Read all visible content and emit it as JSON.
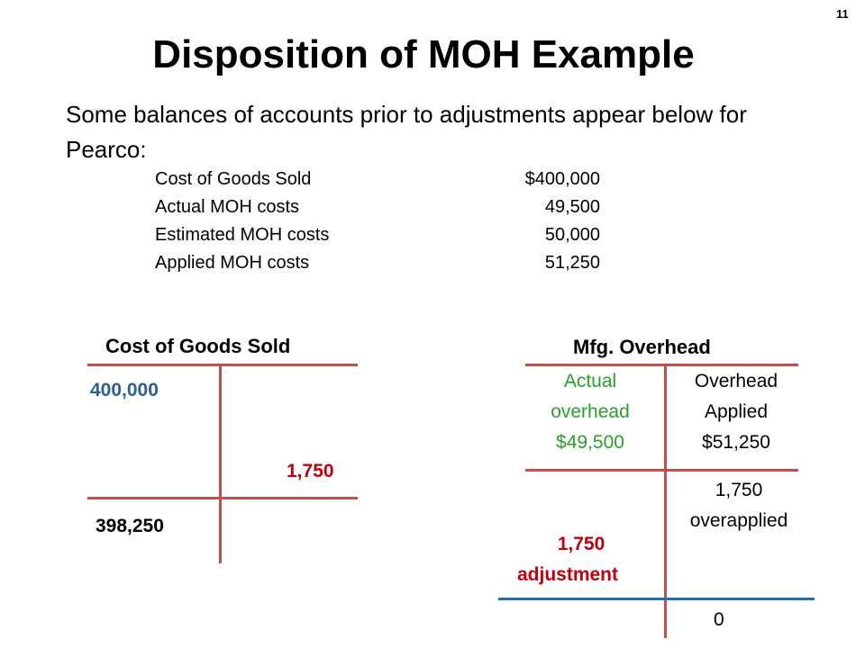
{
  "slide_number": "11",
  "title": "Disposition of MOH Example",
  "intro": "Some balances of accounts prior to adjustments appear below for Pearco:",
  "balances": [
    {
      "label": "Cost of Goods Sold",
      "value": "$400,000"
    },
    {
      "label": "Actual MOH costs",
      "value": "49,500"
    },
    {
      "label": "Estimated MOH costs",
      "value": "50,000"
    },
    {
      "label": "Applied MOH costs",
      "value": "51,250"
    }
  ],
  "cogs": {
    "title": "Cost of Goods Sold",
    "debit": "400,000",
    "credit": "1,750",
    "ending": "398,250"
  },
  "moh": {
    "title": "Mfg. Overhead",
    "actual": [
      "Actual",
      "overhead",
      "$49,500"
    ],
    "applied": [
      "Overhead",
      "Applied",
      "$51,250"
    ],
    "overapplied": [
      "1,750",
      "overapplied"
    ],
    "adjustment": [
      "1,750",
      "adjustment"
    ],
    "ending": "0"
  },
  "colors": {
    "t_account_line": "#c0504d",
    "final_line": "#1f6fa8",
    "blue_value": "#2b5f95",
    "red_value": "#c0000f",
    "green_value": "#2aa02a"
  }
}
